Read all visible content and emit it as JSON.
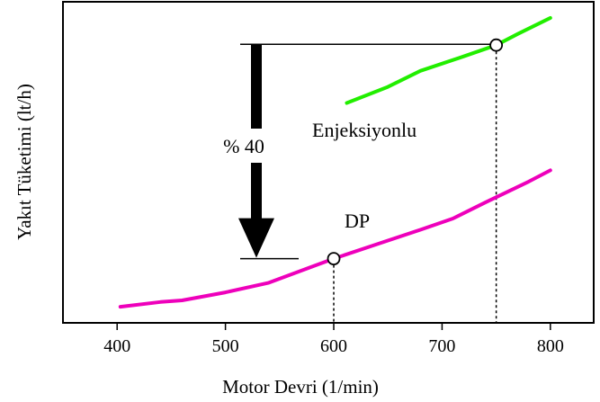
{
  "chart_data": {
    "type": "line",
    "title": "",
    "xlabel": "Motor Devri (1/min)",
    "ylabel": "Yakıt Tüketimi (lt/h)",
    "xlim": [
      350,
      840
    ],
    "ylim": [
      0,
      100
    ],
    "xticks": [
      "400",
      "500",
      "600",
      "700",
      "800"
    ],
    "xtick_values": [
      400,
      500,
      600,
      700,
      800
    ],
    "grid": false,
    "legend": "none",
    "series": [
      {
        "name": "DP",
        "color": "#ee00bb",
        "points": [
          [
            403,
            5
          ],
          [
            440,
            6.5
          ],
          [
            460,
            7
          ],
          [
            500,
            9.5
          ],
          [
            540,
            12.5
          ],
          [
            580,
            17.5
          ],
          [
            600,
            20
          ],
          [
            640,
            24.5
          ],
          [
            680,
            29
          ],
          [
            710,
            32.5
          ],
          [
            740,
            37.5
          ],
          [
            780,
            44
          ],
          [
            800,
            47.5
          ]
        ]
      },
      {
        "name": "Enjeksiyonlu",
        "color": "#22ee00",
        "points": [
          [
            612,
            68.5
          ],
          [
            650,
            73.5
          ],
          [
            680,
            78.5
          ],
          [
            720,
            83
          ],
          [
            750,
            86.5
          ],
          [
            770,
            90
          ],
          [
            800,
            95
          ]
        ]
      }
    ],
    "annotations": {
      "dp_label": "DP",
      "inj_label": "Enjeksiyonlu",
      "reduction_label": "% 40"
    },
    "markers": [
      {
        "series": "DP",
        "x": 600,
        "y": 20
      },
      {
        "series": "Enjeksiyonlu",
        "x": 750,
        "y": 86.5
      }
    ]
  }
}
